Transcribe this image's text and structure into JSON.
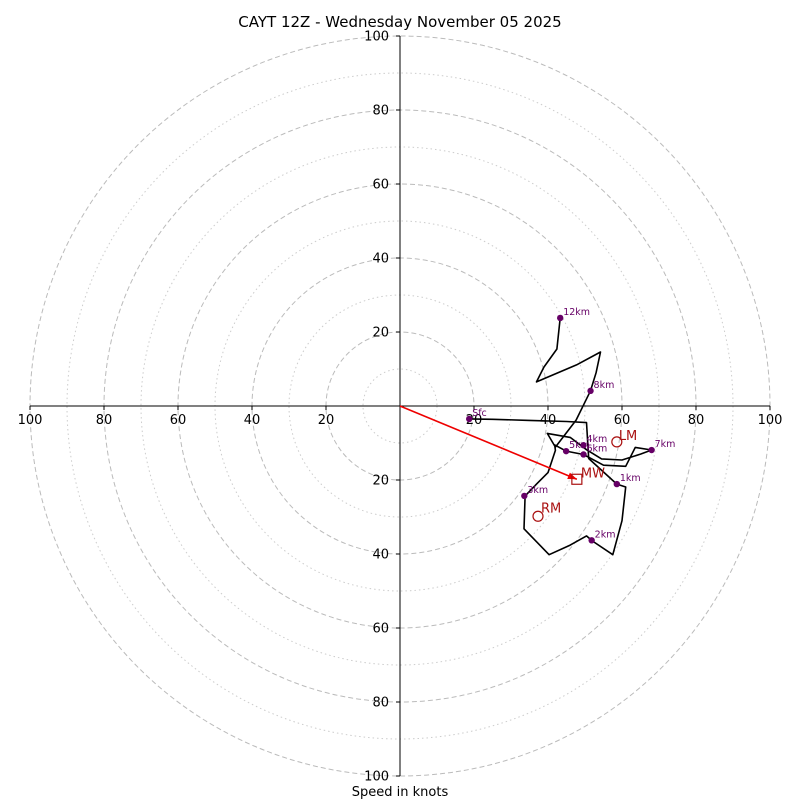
{
  "chart_data": {
    "type": "hodograph",
    "title": "CAYT 12Z - Wednesday November 05 2025",
    "xlabel": "Speed in knots",
    "axis_range": [
      -100,
      100
    ],
    "ring_major": [
      20,
      40,
      60,
      80,
      100
    ],
    "ring_minor": [
      10,
      30,
      50,
      70,
      90
    ],
    "x_ticks": [
      {
        "value": -100,
        "label": "100"
      },
      {
        "value": -80,
        "label": "80"
      },
      {
        "value": -60,
        "label": "60"
      },
      {
        "value": -40,
        "label": "40"
      },
      {
        "value": -20,
        "label": "20"
      },
      {
        "value": 20,
        "label": "20"
      },
      {
        "value": 40,
        "label": "40"
      },
      {
        "value": 60,
        "label": "60"
      },
      {
        "value": 80,
        "label": "80"
      },
      {
        "value": 100,
        "label": "100"
      }
    ],
    "y_ticks": [
      {
        "value": 100,
        "label": "100"
      },
      {
        "value": 80,
        "label": "80"
      },
      {
        "value": 60,
        "label": "60"
      },
      {
        "value": 40,
        "label": "40"
      },
      {
        "value": 20,
        "label": "20"
      },
      {
        "value": -20,
        "label": "20"
      },
      {
        "value": -40,
        "label": "40"
      },
      {
        "value": -60,
        "label": "60"
      },
      {
        "value": -80,
        "label": "80"
      },
      {
        "value": -100,
        "label": "100"
      }
    ],
    "grid": true,
    "trace": [
      [
        18.7,
        -3.5
      ],
      [
        25,
        -3.6
      ],
      [
        35,
        -3.9
      ],
      [
        45,
        -4.2
      ],
      [
        50.4,
        -4.5
      ],
      [
        51,
        -14.2
      ],
      [
        58.6,
        -21.1
      ],
      [
        61,
        -21.9
      ],
      [
        60,
        -31
      ],
      [
        57.5,
        -40.2
      ],
      [
        52,
        -36.5
      ],
      [
        50.4,
        -35.1
      ],
      [
        46,
        -37.6
      ],
      [
        40.3,
        -40.2
      ],
      [
        33.5,
        -33.2
      ],
      [
        33.8,
        -24.3
      ],
      [
        37,
        -21
      ],
      [
        40,
        -18
      ],
      [
        42,
        -12
      ],
      [
        41.8,
        -10.5
      ],
      [
        44.9,
        -12.2
      ],
      [
        49.6,
        -13.1
      ],
      [
        55,
        -16
      ],
      [
        61,
        -16.3
      ],
      [
        63.6,
        -11.2
      ],
      [
        68,
        -11.9
      ],
      [
        65,
        -13
      ],
      [
        60,
        -14.6
      ],
      [
        54.5,
        -14.3
      ],
      [
        50.4,
        -11.8
      ],
      [
        46,
        -8.5
      ],
      [
        39.8,
        -7.4
      ],
      [
        42,
        -11.1
      ],
      [
        47.6,
        -3.8
      ],
      [
        51.5,
        4.1
      ],
      [
        53,
        9
      ],
      [
        54.2,
        14.6
      ],
      [
        47.7,
        11.1
      ],
      [
        36.9,
        6.5
      ],
      [
        38.9,
        10.5
      ],
      [
        42.4,
        15.4
      ],
      [
        43.3,
        23.8
      ]
    ],
    "height_markers": [
      {
        "label": "Sfc",
        "u": 18.7,
        "v": -3.5
      },
      {
        "label": "1km",
        "u": 58.6,
        "v": -21.1
      },
      {
        "label": "2km",
        "u": 51.8,
        "v": -36.3
      },
      {
        "label": "3km",
        "u": 33.6,
        "v": -24.3
      },
      {
        "label": "4km",
        "u": 49.6,
        "v": -10.6
      },
      {
        "label": "5km",
        "u": 44.9,
        "v": -12.2
      },
      {
        "label": "6km",
        "u": 49.6,
        "v": -13.1
      },
      {
        "label": "7km",
        "u": 68.0,
        "v": -11.9
      },
      {
        "label": "8km",
        "u": 51.5,
        "v": 4.1
      },
      {
        "label": "12km",
        "u": 43.3,
        "v": 23.8
      }
    ],
    "storm_motion": {
      "mean_wind": {
        "label": "MW",
        "u": 47.8,
        "v": -19.8
      },
      "left_mover": {
        "label": "LM",
        "u": 58.6,
        "v": -9.7
      },
      "right_mover": {
        "label": "RM",
        "u": 37.3,
        "v": -29.8
      }
    },
    "colors": {
      "trace": "#000000",
      "markers": "#660066",
      "storm": "#aa1111",
      "arrow": "#ee0000",
      "grid": "#bbbbbb",
      "axes": "#000000"
    }
  }
}
